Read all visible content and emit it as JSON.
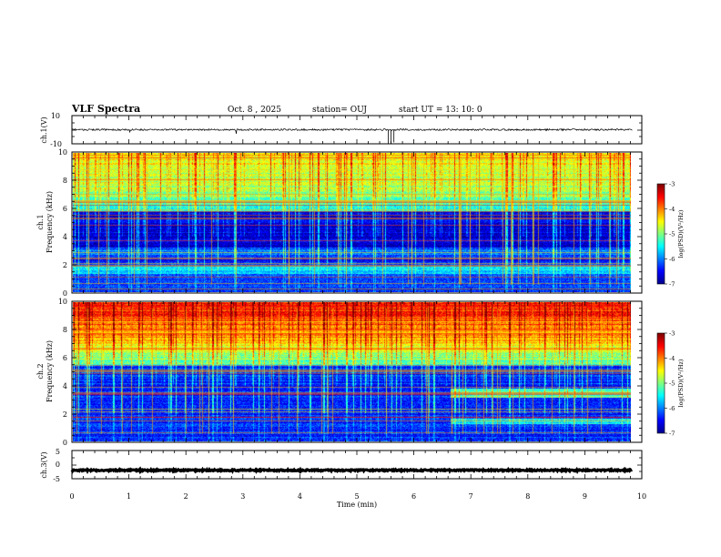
{
  "header": {
    "title": "VLF Spectra",
    "date": "Oct. 8 , 2025",
    "station": "station= OUJ",
    "start": "start UT = 13: 10: 0"
  },
  "colors": {
    "cmap": [
      "#00008f",
      "#0000ff",
      "#0080ff",
      "#00ffff",
      "#80ff80",
      "#ffff00",
      "#ff8000",
      "#ff0000",
      "#800000"
    ],
    "line": "#000000"
  },
  "chart_data": [
    {
      "type": "line",
      "name": "ch1-waveform",
      "ylabel": "ch.1(V)",
      "ylim": [
        -10,
        10
      ],
      "ytick_labels": [
        "10",
        "-10"
      ],
      "baseline": 0,
      "xlim": [
        0,
        10
      ]
    },
    {
      "type": "heatmap",
      "name": "ch1-spectrogram",
      "ylabel_top": "ch.1",
      "ylabel": "Frequency (kHz)",
      "ylim": [
        0,
        10
      ],
      "yticks": [
        0,
        2,
        4,
        6,
        8,
        10
      ],
      "ytick_labels": [
        "0",
        "2",
        "4",
        "6",
        "8",
        "10"
      ],
      "data_end_min": 9.83,
      "colorbar": {
        "label": "log(PSD)(V²/Hz)",
        "range": [
          -7,
          -3
        ],
        "tick_labels": [
          "-3",
          "-4",
          "-5",
          "-6",
          "-7"
        ]
      }
    },
    {
      "type": "heatmap",
      "name": "ch2-spectrogram",
      "ylabel_top": "ch.2",
      "ylabel": "Frequency (kHz)",
      "ylim": [
        0,
        10
      ],
      "yticks": [
        0,
        2,
        4,
        6,
        8,
        10
      ],
      "ytick_labels": [
        "0",
        "2",
        "4",
        "6",
        "8",
        "10"
      ],
      "data_end_min": 9.83,
      "colorbar": {
        "label": "log(PSD)(V²/Hz)",
        "range": [
          -7,
          -3
        ],
        "tick_labels": [
          "-3",
          "-4",
          "-5",
          "-6",
          "-7"
        ]
      }
    },
    {
      "type": "line",
      "name": "ch3-waveform",
      "ylabel": "ch.3(V)",
      "ylim": [
        -5,
        5
      ],
      "ytick_labels": [
        "5",
        "0",
        "-5"
      ],
      "baseline": -2,
      "xlim": [
        0,
        10
      ],
      "xlabel": "Time (min)",
      "xticks": [
        0,
        1,
        2,
        3,
        4,
        5,
        6,
        7,
        8,
        9,
        10
      ],
      "xtick_labels": [
        "0",
        "1",
        "2",
        "3",
        "4",
        "5",
        "6",
        "7",
        "8",
        "9",
        "10"
      ]
    }
  ]
}
